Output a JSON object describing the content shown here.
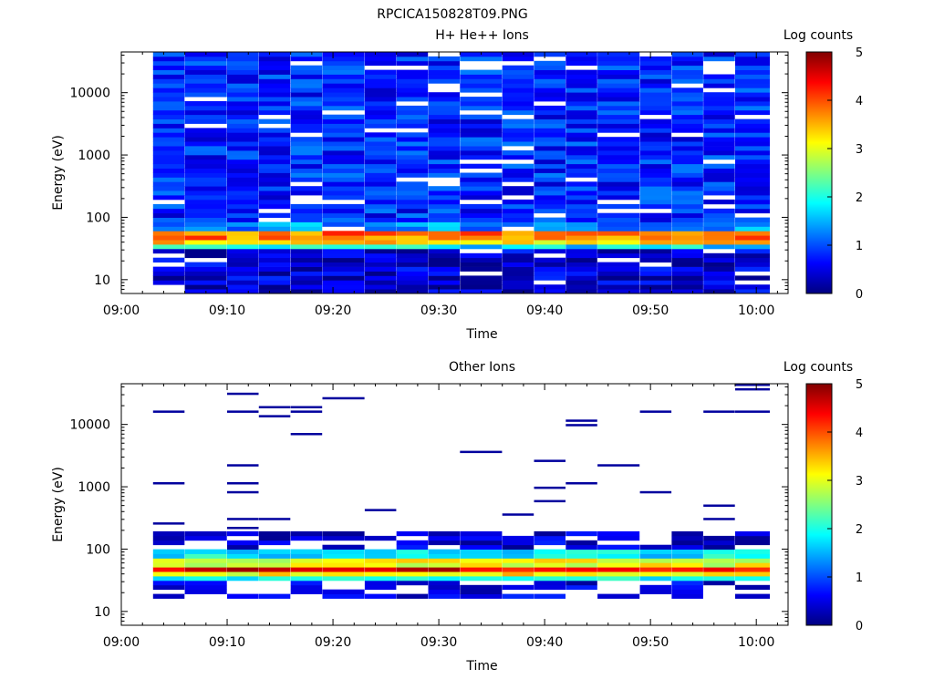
{
  "figure": {
    "filename": "RPCICA150828T09.PNG"
  },
  "colorscale": {
    "stops": [
      "#000080",
      "#0000ff",
      "#0080ff",
      "#00ffff",
      "#80ff80",
      "#ffff00",
      "#ff8000",
      "#ff0000",
      "#800000"
    ]
  },
  "chart_data": [
    {
      "type": "heatmap",
      "title": "H+ He++ Ions",
      "xlabel": "Time",
      "ylabel": "Energy (eV)",
      "colorbar_label": "Log counts",
      "yscale": "log",
      "ylim": [
        6,
        45000
      ],
      "xlim": [
        "09:00",
        "10:03"
      ],
      "xticks": [
        "09:00",
        "09:10",
        "09:20",
        "09:30",
        "09:40",
        "09:50",
        "10:00"
      ],
      "yticks": [
        {
          "value": 10,
          "label": "10"
        },
        {
          "value": 100,
          "label": "100"
        },
        {
          "value": 1000,
          "label": "1000"
        },
        {
          "value": 10000,
          "label": "10000"
        }
      ],
      "colorbar_range": [
        0,
        5
      ],
      "colorbar_ticks": [
        "0",
        "1",
        "2",
        "3",
        "4",
        "5"
      ],
      "time_bins": [
        "09:03",
        "09:06",
        "09:10",
        "09:13",
        "09:16",
        "09:19",
        "09:23",
        "09:26",
        "09:29",
        "09:32",
        "09:36",
        "09:39",
        "09:42",
        "09:45",
        "09:49",
        "09:52",
        "09:55",
        "09:58"
      ],
      "typical_profile": [
        {
          "energy_range": [
            6,
            30
          ],
          "log_counts": 0.4
        },
        {
          "energy_range": [
            30,
            38
          ],
          "log_counts": 1.8
        },
        {
          "energy_range": [
            38,
            45
          ],
          "log_counts": 3.3
        },
        {
          "energy_range": [
            45,
            60
          ],
          "log_counts": 3.8
        },
        {
          "energy_range": [
            60,
            80
          ],
          "log_counts": 1.3
        },
        {
          "energy_range": [
            80,
            45000
          ],
          "log_counts": 0.8
        }
      ],
      "notes": "Low-level background (log counts 0.3-1.5) at all energies; peak 3.5-4.3 near 45-60 eV in every time bin."
    },
    {
      "type": "heatmap",
      "title": "Other Ions",
      "xlabel": "Time",
      "ylabel": "Energy (eV)",
      "colorbar_label": "Log counts",
      "yscale": "log",
      "ylim": [
        6,
        45000
      ],
      "xlim": [
        "09:00",
        "10:03"
      ],
      "xticks": [
        "09:00",
        "09:10",
        "09:20",
        "09:30",
        "09:40",
        "09:50",
        "10:00"
      ],
      "yticks": [
        {
          "value": 10,
          "label": "10"
        },
        {
          "value": 100,
          "label": "100"
        },
        {
          "value": 1000,
          "label": "1000"
        },
        {
          "value": 10000,
          "label": "10000"
        }
      ],
      "colorbar_range": [
        0,
        5
      ],
      "colorbar_ticks": [
        "0",
        "1",
        "2",
        "3",
        "4",
        "5"
      ],
      "time_bins": [
        "09:03",
        "09:06",
        "09:10",
        "09:13",
        "09:16",
        "09:19",
        "09:23",
        "09:26",
        "09:29",
        "09:32",
        "09:36",
        "09:39",
        "09:42",
        "09:45",
        "09:49",
        "09:52",
        "09:55",
        "09:58"
      ],
      "typical_profile": [
        {
          "energy_range": [
            15,
            30
          ],
          "log_counts": 0.5
        },
        {
          "energy_range": [
            30,
            36
          ],
          "log_counts": 2.0
        },
        {
          "energy_range": [
            36,
            42
          ],
          "log_counts": 3.2
        },
        {
          "energy_range": [
            42,
            55
          ],
          "log_counts": 4.5
        },
        {
          "energy_range": [
            55,
            70
          ],
          "log_counts": 3.0
        },
        {
          "energy_range": [
            70,
            100
          ],
          "log_counts": 1.8
        },
        {
          "energy_range": [
            100,
            200
          ],
          "log_counts": 0.4
        }
      ],
      "notes": "Strong band 4-5 log counts at 40-60 eV; sparse single-count lines (~0.1) scattered up to ~35000 eV."
    }
  ]
}
